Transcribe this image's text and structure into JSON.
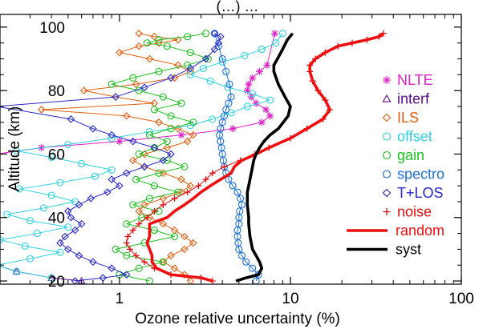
{
  "chart_data": {
    "type": "line",
    "title": "(…) …",
    "xlabel": "Ozone relative uncertainty (%)",
    "ylabel": "Altitude (km)",
    "xscale": "log",
    "xlim": [
      0.2,
      100
    ],
    "ylim": [
      19,
      104
    ],
    "xticks": [
      1,
      10,
      100
    ],
    "xtick_labels": [
      "1",
      "10",
      "100"
    ],
    "yticks": [
      20,
      40,
      60,
      80,
      100
    ],
    "ytick_labels": [
      "20",
      "40",
      "60",
      "80",
      "100"
    ],
    "grid": false,
    "legend_position": "right",
    "series": [
      {
        "name": "NLTE",
        "color": "#e020c8",
        "marker": "star",
        "x": [
          0.19,
          0.35,
          1.0,
          2.3,
          4.6,
          6.8,
          7.6,
          7.2,
          6.3,
          5.9,
          5.6,
          5.7,
          6.0,
          6.6,
          7.3,
          8.1
        ],
        "y": [
          60,
          62,
          64,
          66,
          68,
          70,
          72,
          74,
          76,
          78,
          80,
          82,
          84,
          86,
          88,
          98
        ]
      },
      {
        "name": "interf",
        "color": "#5a0a8a",
        "marker": "triangle",
        "x": [
          0.19,
          0.25,
          0.4,
          0.6
        ],
        "y": [
          25,
          23,
          21,
          20
        ]
      },
      {
        "name": "ILS",
        "color": "#e06010",
        "marker": "diamond",
        "x": [
          2.6,
          2.4,
          2.1,
          1.8,
          2.0,
          2.4,
          2.7,
          2.4,
          2.1,
          1.8,
          1.5,
          1.3,
          1.4,
          1.8,
          2.3,
          2.6,
          2.3,
          1.8,
          1.4,
          1.2,
          1.4,
          1.9,
          2.5,
          2.7,
          2.2,
          1.7,
          1.1,
          0.35,
          1.6,
          0.95,
          0.62,
          1.25,
          2.1,
          2.6,
          2.2,
          1.5,
          1.0,
          1.3,
          1.7,
          2.2,
          1.6,
          1.3
        ],
        "y": [
          20,
          22,
          24,
          26,
          28,
          30,
          32,
          34,
          36,
          38,
          40,
          42,
          44,
          46,
          48,
          50,
          52,
          54,
          56,
          58,
          60,
          62,
          64,
          66,
          68,
          70,
          72,
          74,
          76,
          78,
          80,
          82,
          84,
          86,
          88,
          90,
          92,
          94,
          95,
          96,
          97,
          98
        ]
      },
      {
        "name": "offset",
        "color": "#30d0e0",
        "marker": "circle",
        "x": [
          0.4,
          0.25,
          0.19,
          0.3,
          0.45,
          0.28,
          0.2,
          0.33,
          0.5,
          0.3,
          0.22,
          0.36,
          0.55,
          0.4,
          0.26,
          0.45,
          0.72,
          0.9,
          0.6,
          0.4,
          0.25,
          0.5,
          0.9,
          1.5,
          2.6,
          3.5,
          4.5,
          5.6,
          7.6,
          6.0,
          4.3,
          3.4,
          2.6,
          3.1,
          4.0,
          5.4,
          6.8,
          8.2,
          9.0
        ],
        "y": [
          21,
          23,
          25,
          27,
          29,
          31,
          33,
          35,
          37,
          39,
          41,
          43,
          45,
          47,
          49,
          51,
          53,
          55,
          57,
          59,
          61,
          63,
          65,
          67,
          69,
          71,
          73,
          75,
          77,
          79,
          81,
          83,
          85,
          87,
          89,
          91,
          93,
          95,
          98
        ]
      },
      {
        "name": "gain",
        "color": "#20c020",
        "marker": "circle",
        "x": [
          1.5,
          1.0,
          1.3,
          1.8,
          1.1,
          0.95,
          1.4,
          2.1,
          1.6,
          1.1,
          1.35,
          1.7,
          1.2,
          1.5,
          2.2,
          1.6,
          1.25,
          1.7,
          2.4,
          1.9,
          1.3,
          1.6,
          1.9,
          1.5,
          2.0,
          2.7,
          2.0,
          1.6,
          2.3,
          1.8,
          1.3,
          0.9,
          1.2,
          1.7,
          2.5,
          3.3,
          2.6,
          1.9,
          1.45,
          1.7,
          2.5,
          3.2
        ],
        "y": [
          20,
          22,
          24,
          26,
          28,
          30,
          32,
          34,
          36,
          38,
          40,
          42,
          44,
          46,
          48,
          50,
          52,
          54,
          56,
          58,
          60,
          62,
          64,
          66,
          68,
          70,
          72,
          74,
          76,
          78,
          80,
          82,
          84,
          86,
          88,
          90,
          92,
          94,
          95,
          96,
          97,
          98
        ]
      },
      {
        "name": "spectro",
        "color": "#1a70d8",
        "marker": "circle",
        "x": [
          6.3,
          6.5,
          6.0,
          5.5,
          5.2,
          5.0,
          4.95,
          4.9,
          4.9,
          5.0,
          5.0,
          5.05,
          5.2,
          5.1,
          4.9,
          4.6,
          4.35,
          4.2,
          4.1,
          4.05,
          4.0,
          3.95,
          3.9,
          3.85,
          3.9,
          4.0,
          4.1,
          4.2,
          4.35,
          4.5,
          4.4,
          4.2,
          4.0,
          3.8,
          3.6
        ],
        "y": [
          20,
          22,
          24,
          26,
          28,
          30,
          32,
          34,
          36,
          38,
          40,
          42,
          44,
          46,
          48,
          50,
          52,
          54,
          56,
          58,
          60,
          62,
          64,
          66,
          68,
          70,
          72,
          74,
          76,
          78,
          82,
          86,
          90,
          94,
          98
        ]
      },
      {
        "name": "T+LOS",
        "color": "#2828c8",
        "marker": "diamond",
        "x": [
          0.55,
          0.8,
          1.1,
          0.9,
          0.7,
          0.58,
          0.5,
          0.45,
          0.48,
          0.55,
          0.6,
          0.52,
          0.5,
          0.58,
          0.68,
          0.85,
          1.0,
          0.9,
          1.1,
          1.4,
          1.8,
          2.0,
          1.6,
          1.2,
          0.9,
          0.7,
          0.52,
          0.19,
          0.95,
          1.4,
          2.0,
          2.6,
          3.2,
          3.6,
          3.8,
          3.9,
          3.6
        ],
        "y": [
          20,
          21,
          22,
          24,
          26,
          28,
          30,
          32,
          34,
          36,
          38,
          40,
          42,
          44,
          46,
          48,
          50,
          52,
          54,
          56,
          58,
          60,
          62,
          64,
          66,
          68,
          71,
          75,
          78,
          81,
          84,
          87,
          90,
          93,
          95,
          97,
          98
        ]
      },
      {
        "name": "noise",
        "color": "#e01010",
        "marker": "plus",
        "x": [
          3.5,
          3.0,
          2.0,
          1.6,
          1.4,
          1.25,
          1.15,
          1.1,
          1.12,
          1.2,
          1.3,
          1.45,
          1.6,
          1.8,
          2.1,
          2.5,
          2.9,
          3.2,
          3.5,
          4.1,
          5.1,
          6.2,
          7.5,
          10.0,
          12.5,
          15.5,
          17.0,
          16.0,
          14.5,
          13.5,
          13.0,
          13.0,
          14.0,
          16.0,
          19.0,
          23.0,
          28.0,
          33.0,
          35.0
        ],
        "y": [
          20,
          21,
          22,
          24,
          26,
          28,
          30,
          32,
          34,
          36,
          38,
          40,
          42,
          44,
          46,
          48,
          50,
          52,
          54,
          56,
          58,
          60,
          62,
          65,
          68,
          71,
          74,
          77,
          80,
          83,
          86,
          88,
          90,
          92,
          94,
          95,
          96,
          97,
          98
        ]
      },
      {
        "name": "random",
        "color": "#ee1010",
        "marker": "none",
        "x": [
          3.5,
          3.0,
          2.0,
          1.65,
          1.55,
          1.55,
          1.5,
          1.45,
          1.5,
          1.5,
          1.5,
          1.9,
          2.1,
          2.4,
          2.7,
          3.0,
          3.4,
          3.9,
          4.5,
          4.7,
          5.2,
          6.3,
          7.5,
          10.0,
          12.5,
          15.5,
          17.0,
          16.0,
          14.5,
          13.5,
          13.0,
          13.0,
          14.0,
          16.0,
          19.0,
          23.0,
          28.0,
          33.0,
          35.0
        ],
        "y": [
          20,
          21,
          22,
          24,
          26,
          28,
          30,
          32,
          34,
          36,
          38,
          40,
          42,
          44,
          46,
          48,
          50,
          52,
          54,
          56,
          58,
          60,
          62,
          65,
          68,
          71,
          74,
          77,
          80,
          83,
          86,
          88,
          90,
          92,
          94,
          95,
          96,
          97,
          98
        ]
      },
      {
        "name": "syst",
        "color": "#000000",
        "marker": "none",
        "x": [
          4.8,
          5.5,
          6.5,
          6.8,
          6.6,
          6.3,
          6.0,
          5.9,
          5.8,
          5.75,
          5.7,
          5.7,
          5.65,
          5.6,
          5.6,
          5.6,
          5.7,
          5.8,
          5.9,
          6.0,
          6.1,
          6.3,
          6.6,
          7.0,
          7.6,
          8.5,
          9.7,
          10.0,
          9.3,
          8.5,
          8.0,
          8.0,
          8.4,
          9.0,
          9.6,
          10.3
        ],
        "y": [
          20,
          21,
          22,
          24,
          26,
          28,
          30,
          32,
          34,
          36,
          38,
          40,
          42,
          44,
          46,
          48,
          50,
          52,
          54,
          56,
          58,
          60,
          62,
          64,
          66,
          68,
          72,
          75,
          78,
          82,
          86,
          88,
          90,
          93,
          96,
          98
        ]
      }
    ]
  }
}
